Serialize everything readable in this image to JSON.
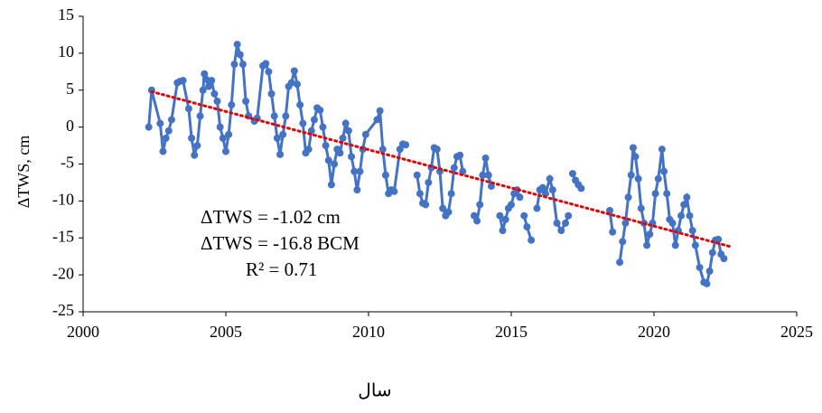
{
  "chart_data": {
    "type": "line",
    "x_label": "سال",
    "y_label": "ΔTWS, cm",
    "annotations": [
      "ΔTWS = -1.02 cm",
      "ΔTWS = -16.8 BCM",
      "R² = 0.71"
    ],
    "xlim": [
      2000,
      2025
    ],
    "xticks": [
      2000,
      2005,
      2010,
      2015,
      2020,
      2025
    ],
    "ylim": [
      -25,
      15
    ],
    "yticks": [
      -25,
      -20,
      -15,
      -10,
      -5,
      0,
      5,
      10,
      15
    ],
    "grid": false,
    "x": [
      2002.3,
      2002.4,
      2002.7,
      2002.8,
      2002.9,
      2003.0,
      2003.1,
      2003.3,
      2003.4,
      2003.5,
      2003.7,
      2003.8,
      2003.9,
      2004.0,
      2004.1,
      2004.2,
      2004.25,
      2004.3,
      2004.4,
      2004.5,
      2004.6,
      2004.7,
      2004.8,
      2004.9,
      2005.0,
      2005.1,
      2005.2,
      2005.3,
      2005.4,
      2005.5,
      2005.6,
      2005.7,
      2005.8,
      2006.0,
      2006.1,
      2006.3,
      2006.4,
      2006.5,
      2006.6,
      2006.7,
      2006.8,
      2006.9,
      2007.0,
      2007.1,
      2007.2,
      2007.3,
      2007.4,
      2007.5,
      2007.6,
      2007.7,
      2007.8,
      2007.9,
      2008.0,
      2008.1,
      2008.2,
      2008.3,
      2008.4,
      2008.5,
      2008.6,
      2008.7,
      2008.8,
      2008.9,
      2009.0,
      2009.1,
      2009.2,
      2009.3,
      2009.4,
      2009.5,
      2009.6,
      2009.7,
      2009.8,
      2009.9,
      2010.3,
      2010.4,
      2010.5,
      2010.6,
      2010.7,
      2010.8,
      2010.9,
      2011.1,
      2011.2,
      2011.3,
      null,
      2011.7,
      2011.8,
      2011.9,
      2012.0,
      2012.1,
      2012.2,
      2012.3,
      2012.4,
      2012.5,
      2012.6,
      2012.7,
      2012.8,
      2012.9,
      2013.0,
      2013.1,
      2013.2,
      2013.3,
      null,
      2013.7,
      2013.8,
      2013.9,
      2014.0,
      2014.1,
      2014.2,
      2014.3,
      null,
      2014.6,
      2014.7,
      2014.8,
      2014.9,
      2015.0,
      2015.1,
      2015.2,
      2015.3,
      null,
      2015.45,
      2015.55,
      2015.7,
      null,
      2015.9,
      2016.0,
      2016.1,
      2016.2,
      2016.35,
      2016.45,
      2016.6,
      2016.75,
      2016.9,
      2017.0,
      null,
      2017.15,
      2017.25,
      2017.35,
      2017.45,
      null,
      2018.45,
      2018.55,
      null,
      2018.8,
      2018.9,
      2019.0,
      2019.1,
      2019.2,
      2019.27,
      2019.35,
      2019.45,
      2019.55,
      2019.65,
      2019.75,
      2019.85,
      2019.95,
      2020.05,
      2020.15,
      2020.28,
      2020.35,
      2020.45,
      2020.55,
      2020.65,
      2020.75,
      2020.85,
      2020.95,
      2021.05,
      2021.15,
      2021.25,
      2021.35,
      2021.45,
      2021.6,
      2021.75,
      2021.85,
      2021.95,
      2022.05,
      2022.15,
      2022.25,
      2022.35,
      2022.45
    ],
    "series": [
      {
        "color": "#4472c4",
        "values": [
          0,
          5,
          0.5,
          -3.3,
          -1.5,
          -0.5,
          1,
          6,
          6.2,
          6.3,
          2.5,
          -1.5,
          -3.8,
          -2.5,
          1.5,
          5,
          7.2,
          6.5,
          5.5,
          6.3,
          4.5,
          3.5,
          0,
          -1.5,
          -3.3,
          -1,
          3,
          8.5,
          11.2,
          9.8,
          8.5,
          3.5,
          1.5,
          0.8,
          1.2,
          8.3,
          8.6,
          7.5,
          4.5,
          1.5,
          -1.5,
          -3.7,
          -1,
          1.5,
          5.5,
          6,
          7.6,
          5.8,
          3,
          0.5,
          -3.5,
          -3,
          -0.5,
          1,
          2.6,
          2.3,
          0,
          -2.5,
          -4.5,
          -7.8,
          -5,
          -3,
          -3.5,
          -1.5,
          0.5,
          -0.5,
          -4,
          -6,
          -8.5,
          -6,
          -3,
          -1,
          1,
          2.2,
          -3,
          -6.5,
          -9,
          -8.5,
          -8.7,
          -3,
          -2.3,
          -2.4,
          null,
          -6.5,
          -9,
          -10.3,
          -10.5,
          -7.5,
          -5.5,
          -2.8,
          -3,
          -6,
          -11,
          -12,
          -11.5,
          -9,
          -5.5,
          -4,
          -3.8,
          -6,
          null,
          -12,
          -12.7,
          -10.5,
          -6.5,
          -4.2,
          -6.5,
          -8,
          null,
          -12,
          -14,
          -12.5,
          -11,
          -10.5,
          -9,
          -8.5,
          -9.5,
          null,
          -12,
          -13.5,
          -15.3,
          null,
          -11,
          -8.5,
          -8.2,
          -9,
          -7,
          -8.5,
          -13,
          -14,
          -13,
          -12,
          null,
          -6.3,
          -7.2,
          -7.8,
          -8.3,
          null,
          -11.3,
          -14.2,
          null,
          -18.3,
          -15.5,
          -13,
          -9.5,
          -6.5,
          -2.8,
          -4,
          -7,
          -11,
          -13,
          -16,
          -14.5,
          -13,
          -9,
          -7,
          -3,
          -6,
          -9,
          -12.5,
          -13,
          -16,
          -14,
          -12,
          -10.5,
          -9.5,
          -12,
          -14,
          -16,
          -19,
          -21,
          -21.2,
          -19.5,
          -17,
          -15.3,
          -15.2,
          -17.2,
          -17.8
        ]
      }
    ],
    "trend": {
      "x": [
        2002.4,
        2022.7
      ],
      "values": [
        4.8,
        -16.2
      ],
      "color": "#e00000"
    }
  }
}
